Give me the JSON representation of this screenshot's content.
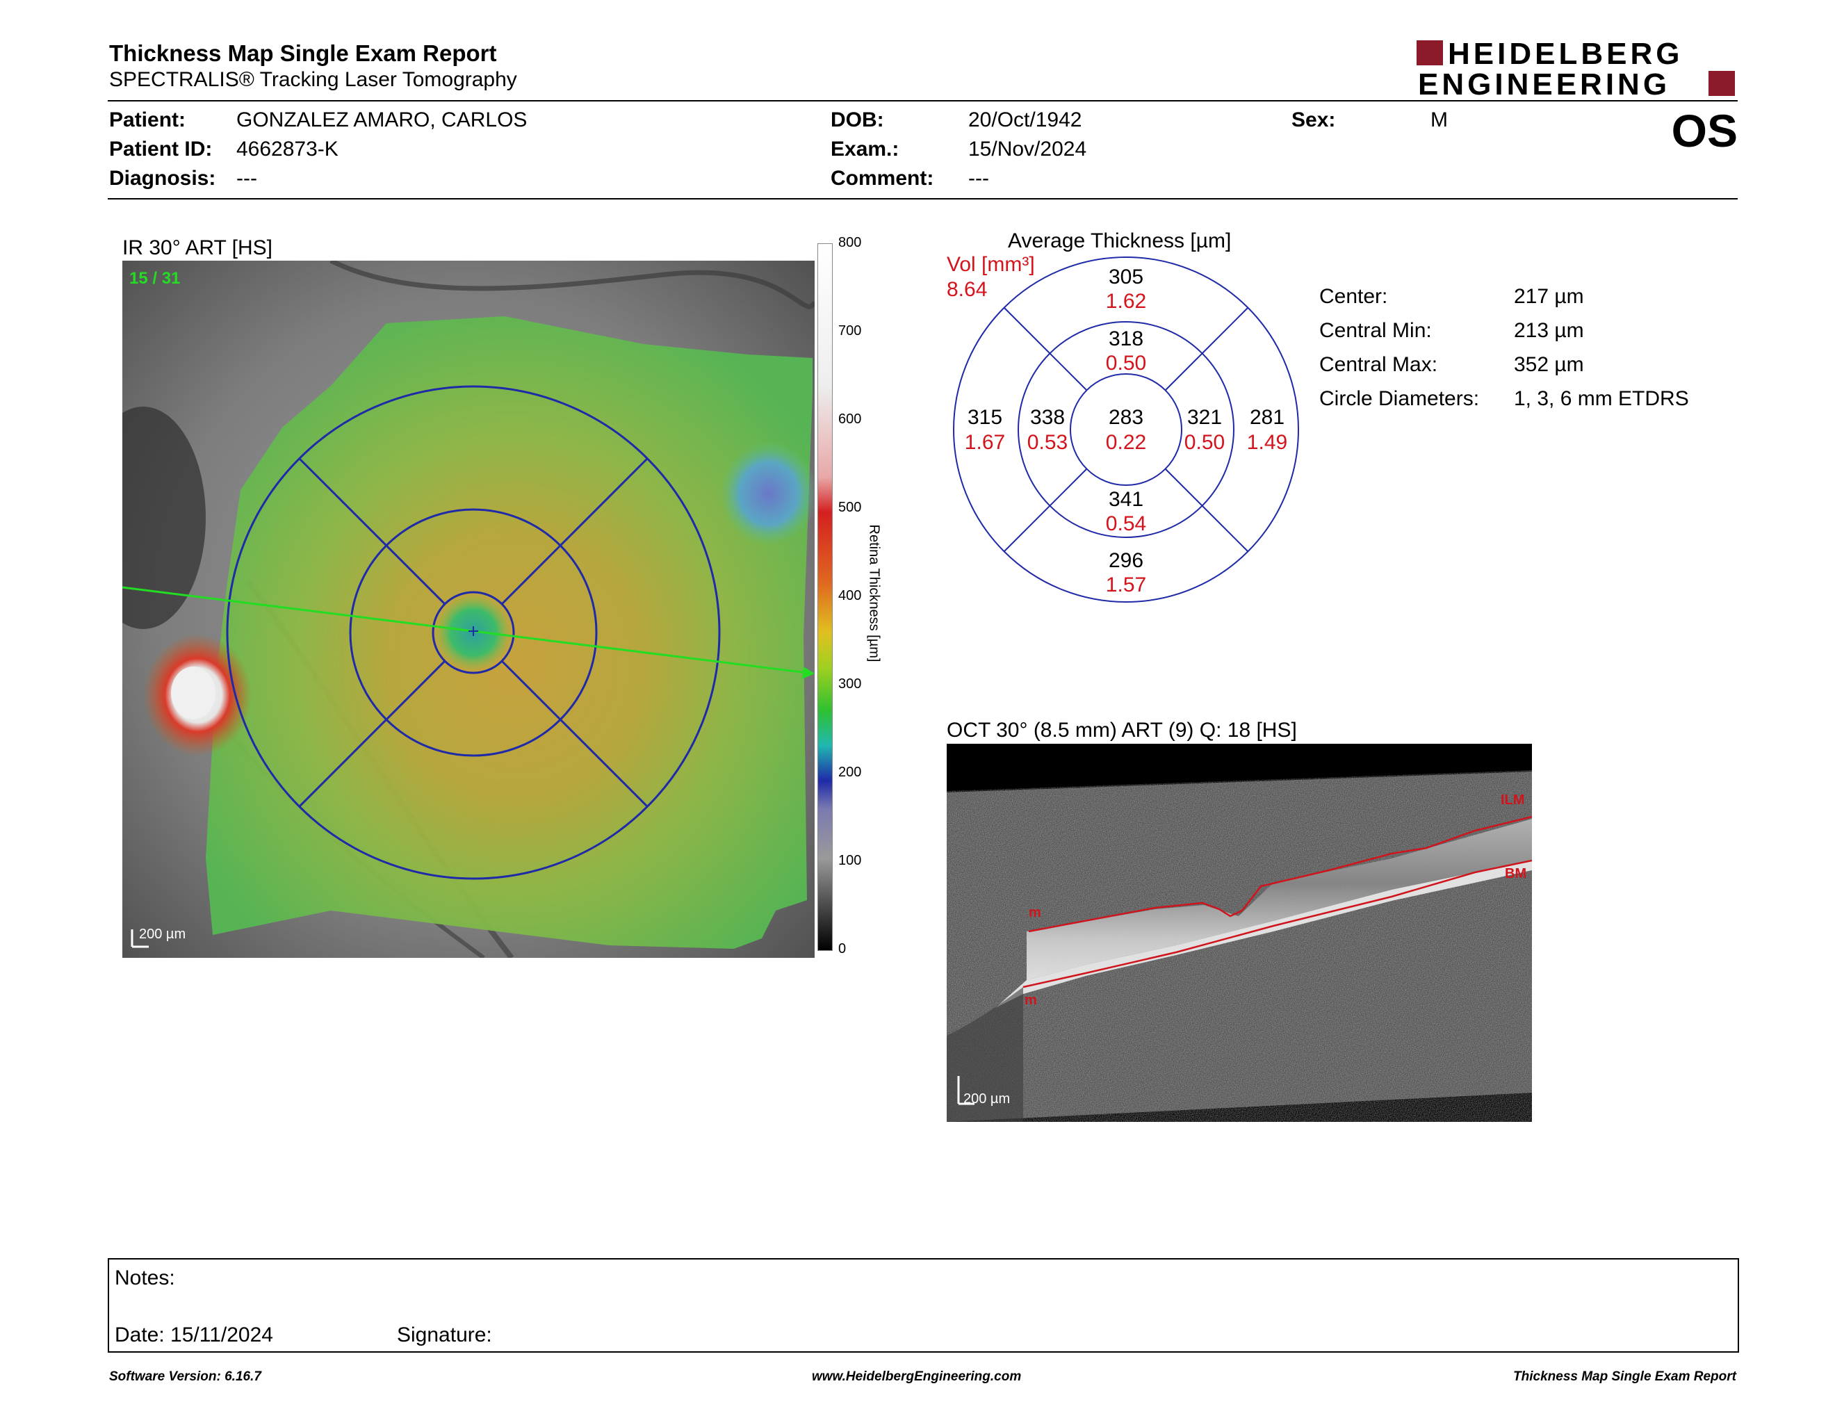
{
  "report": {
    "title": "Thickness Map Single Exam Report",
    "subtitle": "SPECTRALIS® Tracking Laser Tomography",
    "eye": "OS"
  },
  "logo": {
    "line1": "HEIDELBERG",
    "line2": "ENGINEERING",
    "accent": "#8b1a2b"
  },
  "patient": {
    "name_label": "Patient:",
    "name": "GONZALEZ AMARO, CARLOS",
    "id_label": "Patient ID:",
    "id": "4662873-K",
    "diagnosis_label": "Diagnosis:",
    "diagnosis": "---",
    "dob_label": "DOB:",
    "dob": "20/Oct/1942",
    "exam_label": "Exam.:",
    "exam": "15/Nov/2024",
    "comment_label": "Comment:",
    "comment": "---",
    "sex_label": "Sex:",
    "sex": "M"
  },
  "ir_image": {
    "caption": "IR 30° ART [HS]",
    "frames": "15 / 31",
    "scalebar": "200 µm"
  },
  "color_scale": {
    "title": "Retina  Thickness [µm]",
    "ticks": [
      "800",
      "700",
      "600",
      "500",
      "400",
      "300",
      "200",
      "100",
      "0"
    ]
  },
  "etdrs": {
    "title": "Average Thickness [µm]",
    "vol_label": "Vol [mm³]",
    "vol_total": "8.64",
    "sectors": {
      "center": {
        "thickness": "283",
        "volume": "0.22"
      },
      "inner_superior": {
        "thickness": "318",
        "volume": "0.50"
      },
      "inner_inferior": {
        "thickness": "341",
        "volume": "0.54"
      },
      "inner_temporal_left": {
        "thickness": "338",
        "volume": "0.53"
      },
      "inner_nasal_right": {
        "thickness": "321",
        "volume": "0.50"
      },
      "outer_superior": {
        "thickness": "305",
        "volume": "1.62"
      },
      "outer_inferior": {
        "thickness": "296",
        "volume": "1.57"
      },
      "outer_left": {
        "thickness": "315",
        "volume": "1.67"
      },
      "outer_right": {
        "thickness": "281",
        "volume": "1.49"
      }
    },
    "colors": {
      "thickness": "#000000",
      "volume": "#d4141c",
      "rings": "#1f2aa8"
    }
  },
  "stats": [
    {
      "label": "Center:",
      "value": "217 µm"
    },
    {
      "label": "Central Min:",
      "value": "213 µm"
    },
    {
      "label": "Central Max:",
      "value": "352 µm"
    },
    {
      "label": "Circle Diameters:",
      "value": "1, 3, 6 mm ETDRS"
    }
  ],
  "oct": {
    "caption": "OCT 30° (8.5 mm) ART (9) Q: 18 [HS]",
    "ilm_label": "ILM",
    "bm_label": "BM",
    "m_label": "m",
    "scalebar": "200 µm"
  },
  "notes": {
    "notes_label": "Notes:",
    "date_label": "Date: 15/11/2024",
    "signature_label": "Signature:"
  },
  "footer": {
    "software": "Software Version: 6.16.7",
    "website": "www.HeidelbergEngineering.com",
    "report_name": "Thickness Map Single Exam Report"
  }
}
